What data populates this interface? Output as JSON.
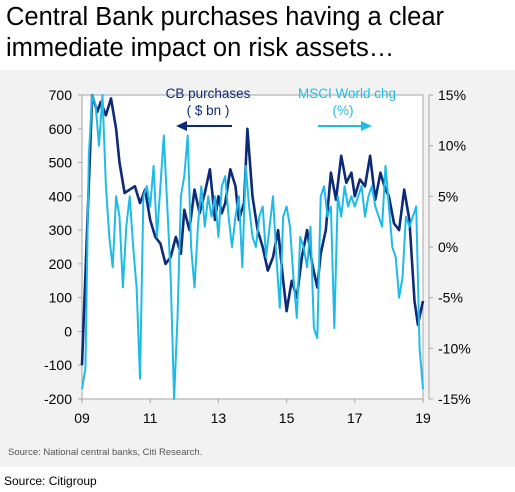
{
  "headline": "Central Bank purchases having a clear immediate impact on risk assets…",
  "source_inner": "Source: National central banks, Citi Research.",
  "source_outer": "Source: Citigroup",
  "chart_data": {
    "type": "line",
    "title": "",
    "xlabel": "",
    "x_tick_labels": [
      "09",
      "11",
      "13",
      "15",
      "17",
      "19"
    ],
    "x_range": [
      2009.0,
      2019.0
    ],
    "y_left": {
      "ticks": [
        "700",
        "600",
        "500",
        "400",
        "300",
        "200",
        "100",
        "0",
        "-100",
        "-200"
      ],
      "range": [
        -200,
        700
      ]
    },
    "y_right": {
      "ticks": [
        "15%",
        "10%",
        "5%",
        "0%",
        "-5%",
        "-10%",
        "-15%"
      ],
      "range": [
        -15,
        15
      ]
    },
    "grid": false,
    "annotations": [
      {
        "line1": "CB purchases",
        "line2": "( $ bn )",
        "arrow": "left"
      },
      {
        "line1": "MSCI World chg",
        "line2": "(%)",
        "arrow": "right"
      }
    ],
    "series": [
      {
        "name": "CB purchases",
        "axis": "left",
        "color": "#0d2a78",
        "x": [
          2009.0,
          2009.15,
          2009.3,
          2009.45,
          2009.55,
          2009.7,
          2009.85,
          2010.0,
          2010.1,
          2010.25,
          2010.4,
          2010.55,
          2010.7,
          2010.85,
          2011.0,
          2011.15,
          2011.3,
          2011.45,
          2011.6,
          2011.75,
          2011.9,
          2012.0,
          2012.15,
          2012.3,
          2012.45,
          2012.6,
          2012.75,
          2012.9,
          2013.0,
          2013.1,
          2013.2,
          2013.35,
          2013.5,
          2013.6,
          2013.75,
          2013.85,
          2014.0,
          2014.15,
          2014.3,
          2014.45,
          2014.6,
          2014.75,
          2014.9,
          2015.0,
          2015.15,
          2015.3,
          2015.45,
          2015.6,
          2015.75,
          2015.9,
          2016.0,
          2016.15,
          2016.3,
          2016.45,
          2016.6,
          2016.75,
          2016.9,
          2017.0,
          2017.15,
          2017.3,
          2017.45,
          2017.6,
          2017.75,
          2017.9,
          2018.0,
          2018.15,
          2018.3,
          2018.45,
          2018.6,
          2018.75,
          2018.85,
          2019.0
        ],
        "values": [
          -100,
          300,
          700,
          650,
          680,
          640,
          690,
          600,
          500,
          410,
          420,
          430,
          380,
          420,
          330,
          280,
          260,
          200,
          220,
          280,
          230,
          360,
          300,
          420,
          350,
          410,
          480,
          330,
          400,
          350,
          380,
          480,
          430,
          330,
          380,
          600,
          400,
          300,
          250,
          180,
          220,
          300,
          150,
          60,
          150,
          100,
          220,
          300,
          200,
          130,
          230,
          300,
          470,
          390,
          520,
          440,
          470,
          400,
          450,
          430,
          520,
          390,
          470,
          420,
          400,
          320,
          300,
          420,
          330,
          90,
          20,
          90
        ]
      },
      {
        "name": "MSCI World chg",
        "axis": "right",
        "color": "#1fbbe8",
        "x": [
          2009.0,
          2009.1,
          2009.2,
          2009.3,
          2009.4,
          2009.5,
          2009.6,
          2009.7,
          2009.8,
          2009.9,
          2010.0,
          2010.1,
          2010.2,
          2010.3,
          2010.4,
          2010.5,
          2010.6,
          2010.7,
          2010.8,
          2010.9,
          2011.0,
          2011.1,
          2011.2,
          2011.3,
          2011.4,
          2011.5,
          2011.6,
          2011.7,
          2011.8,
          2011.9,
          2012.0,
          2012.1,
          2012.2,
          2012.3,
          2012.4,
          2012.5,
          2012.6,
          2012.7,
          2012.8,
          2012.9,
          2013.0,
          2013.1,
          2013.2,
          2013.3,
          2013.4,
          2013.5,
          2013.6,
          2013.7,
          2013.8,
          2013.9,
          2014.0,
          2014.1,
          2014.2,
          2014.3,
          2014.4,
          2014.5,
          2014.6,
          2014.7,
          2014.8,
          2014.9,
          2015.0,
          2015.1,
          2015.2,
          2015.3,
          2015.4,
          2015.5,
          2015.6,
          2015.7,
          2015.8,
          2015.9,
          2016.0,
          2016.1,
          2016.2,
          2016.3,
          2016.4,
          2016.5,
          2016.6,
          2016.7,
          2016.8,
          2016.9,
          2017.0,
          2017.1,
          2017.2,
          2017.3,
          2017.4,
          2017.5,
          2017.6,
          2017.7,
          2017.8,
          2017.9,
          2018.0,
          2018.1,
          2018.2,
          2018.3,
          2018.4,
          2018.5,
          2018.6,
          2018.7,
          2018.8,
          2018.9,
          2019.0
        ],
        "values": [
          -14,
          -12,
          9,
          15,
          14,
          10,
          15,
          6,
          1,
          -2,
          5,
          3,
          -4,
          2,
          5,
          0,
          -4,
          -13,
          5,
          6,
          4,
          8,
          1,
          6,
          11,
          4,
          -3,
          -15,
          -7,
          5,
          7,
          11,
          0,
          -4,
          2,
          6,
          2,
          5,
          3,
          5,
          1,
          6,
          7,
          3,
          0,
          3,
          5,
          -2,
          8,
          4,
          1,
          0,
          3,
          4,
          -1,
          2,
          5,
          -1,
          -6,
          3,
          4,
          2,
          -3,
          -7,
          1,
          0,
          -2,
          2,
          -8,
          -9,
          5,
          6,
          3,
          4,
          -8,
          5,
          3,
          6,
          4,
          5,
          4,
          5,
          6,
          3,
          5,
          6,
          4,
          3,
          2,
          8,
          4,
          0,
          -1,
          -5,
          -3,
          3,
          2,
          3,
          4,
          -10,
          -14
        ]
      }
    ]
  }
}
